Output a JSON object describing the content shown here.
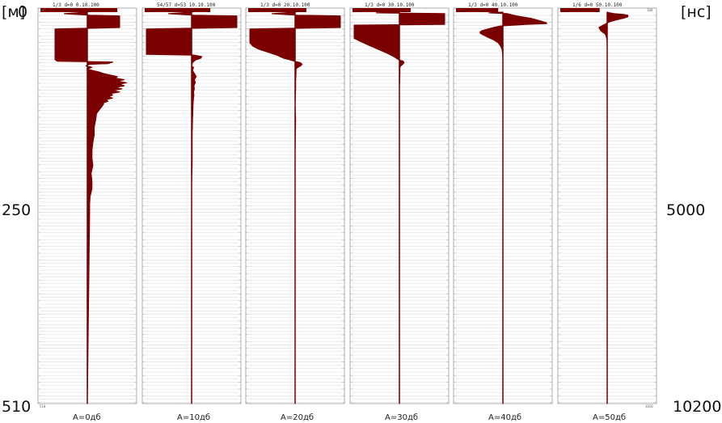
{
  "chart_data": {
    "type": "area",
    "title": "",
    "left_axis": {
      "unit_label": "[м]",
      "ticks": [
        {
          "value": 0,
          "label": "0"
        },
        {
          "value": 250,
          "label": "250"
        },
        {
          "value": 510,
          "label": "510"
        }
      ],
      "range": [
        0,
        510
      ]
    },
    "right_axis": {
      "unit_label": "[нс]",
      "ticks": [
        {
          "value": 5000,
          "label": "5000"
        },
        {
          "value": 10200,
          "label": "10200"
        }
      ],
      "range": [
        0,
        10200
      ]
    },
    "panel_scale": {
      "left_top": "[м]",
      "left_bottom": "510",
      "right_top": "100",
      "right_bottom": "1020"
    },
    "color": "#7a0000",
    "grid": true,
    "panels": [
      {
        "name": "A=0дб",
        "header": "1/3  d=0  0.10.100",
        "header_bar_end": 0.82,
        "trace": [
          [
            0,
            0
          ],
          [
            2,
            -0.5
          ],
          [
            4,
            0.05
          ],
          [
            5,
            0.7
          ],
          [
            20,
            0.7
          ],
          [
            22,
            -0.7
          ],
          [
            50,
            -0.7
          ],
          [
            60,
            -0.7
          ],
          [
            62,
            -0.7
          ],
          [
            64,
            -0.65
          ],
          [
            65,
            0.55
          ],
          [
            67,
            0.45
          ],
          [
            68,
            0.05
          ],
          [
            70,
            -0.03
          ],
          [
            72,
            0.1
          ],
          [
            74,
            0
          ],
          [
            76,
            0.1
          ],
          [
            78,
            0.25
          ],
          [
            80,
            0.35
          ],
          [
            82,
            0.5
          ],
          [
            84,
            0.65
          ],
          [
            86,
            0.6
          ],
          [
            88,
            0.8
          ],
          [
            90,
            0.65
          ],
          [
            92,
            0.85
          ],
          [
            94,
            0.7
          ],
          [
            96,
            0.8
          ],
          [
            98,
            0.6
          ],
          [
            100,
            0.75
          ],
          [
            102,
            0.55
          ],
          [
            104,
            0.7
          ],
          [
            106,
            0.5
          ],
          [
            108,
            0.55
          ],
          [
            110,
            0.45
          ],
          [
            112,
            0.55
          ],
          [
            114,
            0.4
          ],
          [
            116,
            0.45
          ],
          [
            118,
            0.35
          ],
          [
            120,
            0.35
          ],
          [
            124,
            0.3
          ],
          [
            128,
            0.25
          ],
          [
            132,
            0.2
          ],
          [
            140,
            0.18
          ],
          [
            150,
            0.15
          ],
          [
            160,
            0.15
          ],
          [
            170,
            0.12
          ],
          [
            180,
            0.1
          ],
          [
            190,
            0.1
          ],
          [
            200,
            0.12
          ],
          [
            210,
            0.08
          ],
          [
            220,
            0.1
          ],
          [
            230,
            0.1
          ],
          [
            240,
            0.06
          ],
          [
            250,
            0.05
          ],
          [
            260,
            0.05
          ]
        ]
      },
      {
        "name": "A=10дб",
        "header": "54/57  d=53  10.10.100",
        "header_bar_end": 0.7,
        "trace": [
          [
            0,
            0
          ],
          [
            2,
            -0.5
          ],
          [
            4,
            0.05
          ],
          [
            5,
            0.98
          ],
          [
            20,
            0.98
          ],
          [
            22,
            -0.98
          ],
          [
            46,
            -0.98
          ],
          [
            54,
            -0.98
          ],
          [
            55,
            -0.98
          ],
          [
            56,
            0.05
          ],
          [
            58,
            0.22
          ],
          [
            60,
            0.2
          ],
          [
            62,
            0.1
          ],
          [
            64,
            0.05
          ],
          [
            66,
            0.02
          ],
          [
            70,
            0
          ],
          [
            72,
            0.04
          ],
          [
            76,
            0.02
          ],
          [
            80,
            0.06
          ],
          [
            84,
            0.1
          ],
          [
            88,
            0.06
          ],
          [
            92,
            0.08
          ],
          [
            96,
            0.05
          ],
          [
            100,
            0.06
          ],
          [
            104,
            0.04
          ],
          [
            108,
            0.05
          ],
          [
            112,
            0.04
          ],
          [
            120,
            0.03
          ],
          [
            140,
            0.02
          ],
          [
            160,
            0.01
          ],
          [
            180,
            0.01
          ],
          [
            200,
            0.01
          ],
          [
            220,
            0.0
          ],
          [
            260,
            0.0
          ]
        ]
      },
      {
        "name": "A=20дб",
        "header": "1/3  d=0  20.10.100",
        "header_bar_end": 0.62,
        "trace": [
          [
            0,
            0
          ],
          [
            2,
            -0.5
          ],
          [
            4,
            0.05
          ],
          [
            5,
            0.98
          ],
          [
            20,
            0.98
          ],
          [
            22,
            -0.98
          ],
          [
            40,
            -0.98
          ],
          [
            44,
            -0.92
          ],
          [
            48,
            -0.8
          ],
          [
            52,
            -0.6
          ],
          [
            56,
            -0.4
          ],
          [
            60,
            -0.25
          ],
          [
            62,
            -0.12
          ],
          [
            64,
            -0.02
          ],
          [
            66,
            0.12
          ],
          [
            68,
            0.15
          ],
          [
            70,
            0.12
          ],
          [
            72,
            0.06
          ],
          [
            74,
            0.02
          ],
          [
            80,
            0.02
          ],
          [
            90,
            0.01
          ],
          [
            100,
            0.01
          ],
          [
            120,
            0.0
          ],
          [
            140,
            0.01
          ],
          [
            180,
            0.0
          ],
          [
            260,
            0.0
          ]
        ]
      },
      {
        "name": "A=30дб",
        "header": "1/3  d=0  30.10.100",
        "header_bar_end": 0.62,
        "trace": [
          [
            0,
            0
          ],
          [
            1,
            -0.5
          ],
          [
            2,
            0.98
          ],
          [
            16,
            0.98
          ],
          [
            17,
            -0.98
          ],
          [
            34,
            -0.98
          ],
          [
            38,
            -0.85
          ],
          [
            42,
            -0.7
          ],
          [
            46,
            -0.55
          ],
          [
            50,
            -0.4
          ],
          [
            54,
            -0.25
          ],
          [
            58,
            -0.12
          ],
          [
            62,
            -0.02
          ],
          [
            64,
            0.08
          ],
          [
            66,
            0.1
          ],
          [
            68,
            0.07
          ],
          [
            70,
            0.03
          ],
          [
            72,
            0.01
          ],
          [
            80,
            0.01
          ],
          [
            100,
            0.0
          ],
          [
            260,
            0.0
          ]
        ]
      },
      {
        "name": "A=40дб",
        "header": "1/3  d=0  40.10.100",
        "header_bar_end": 0.45,
        "trace": [
          [
            0,
            0
          ],
          [
            1,
            -0.3
          ],
          [
            2,
            0.1
          ],
          [
            5,
            0.3
          ],
          [
            8,
            0.6
          ],
          [
            12,
            0.85
          ],
          [
            14,
            0.95
          ],
          [
            15,
            0.95
          ],
          [
            16,
            0.5
          ],
          [
            18,
            -0.05
          ],
          [
            20,
            -0.2
          ],
          [
            24,
            -0.45
          ],
          [
            26,
            -0.5
          ],
          [
            28,
            -0.48
          ],
          [
            32,
            -0.35
          ],
          [
            36,
            -0.2
          ],
          [
            40,
            -0.1
          ],
          [
            44,
            -0.05
          ],
          [
            48,
            -0.02
          ],
          [
            52,
            -0.01
          ],
          [
            60,
            0.0
          ],
          [
            80,
            0.0
          ],
          [
            260,
            0.0
          ]
        ]
      },
      {
        "name": "A=50дб",
        "header": "1/6  d=0  50.10.100",
        "header_bar_end": 0.42,
        "trace": [
          [
            0,
            0
          ],
          [
            1,
            0.05
          ],
          [
            2,
            0.15
          ],
          [
            3,
            0.35
          ],
          [
            4,
            0.45
          ],
          [
            6,
            0.45
          ],
          [
            8,
            0.35
          ],
          [
            10,
            0.2
          ],
          [
            12,
            0.08
          ],
          [
            14,
            0.0
          ],
          [
            16,
            -0.05
          ],
          [
            18,
            -0.12
          ],
          [
            20,
            -0.18
          ],
          [
            22,
            -0.16
          ],
          [
            24,
            -0.14
          ],
          [
            26,
            -0.1
          ],
          [
            28,
            -0.05
          ],
          [
            30,
            -0.03
          ],
          [
            34,
            -0.01
          ],
          [
            40,
            0.0
          ],
          [
            260,
            0.0
          ]
        ]
      }
    ]
  }
}
